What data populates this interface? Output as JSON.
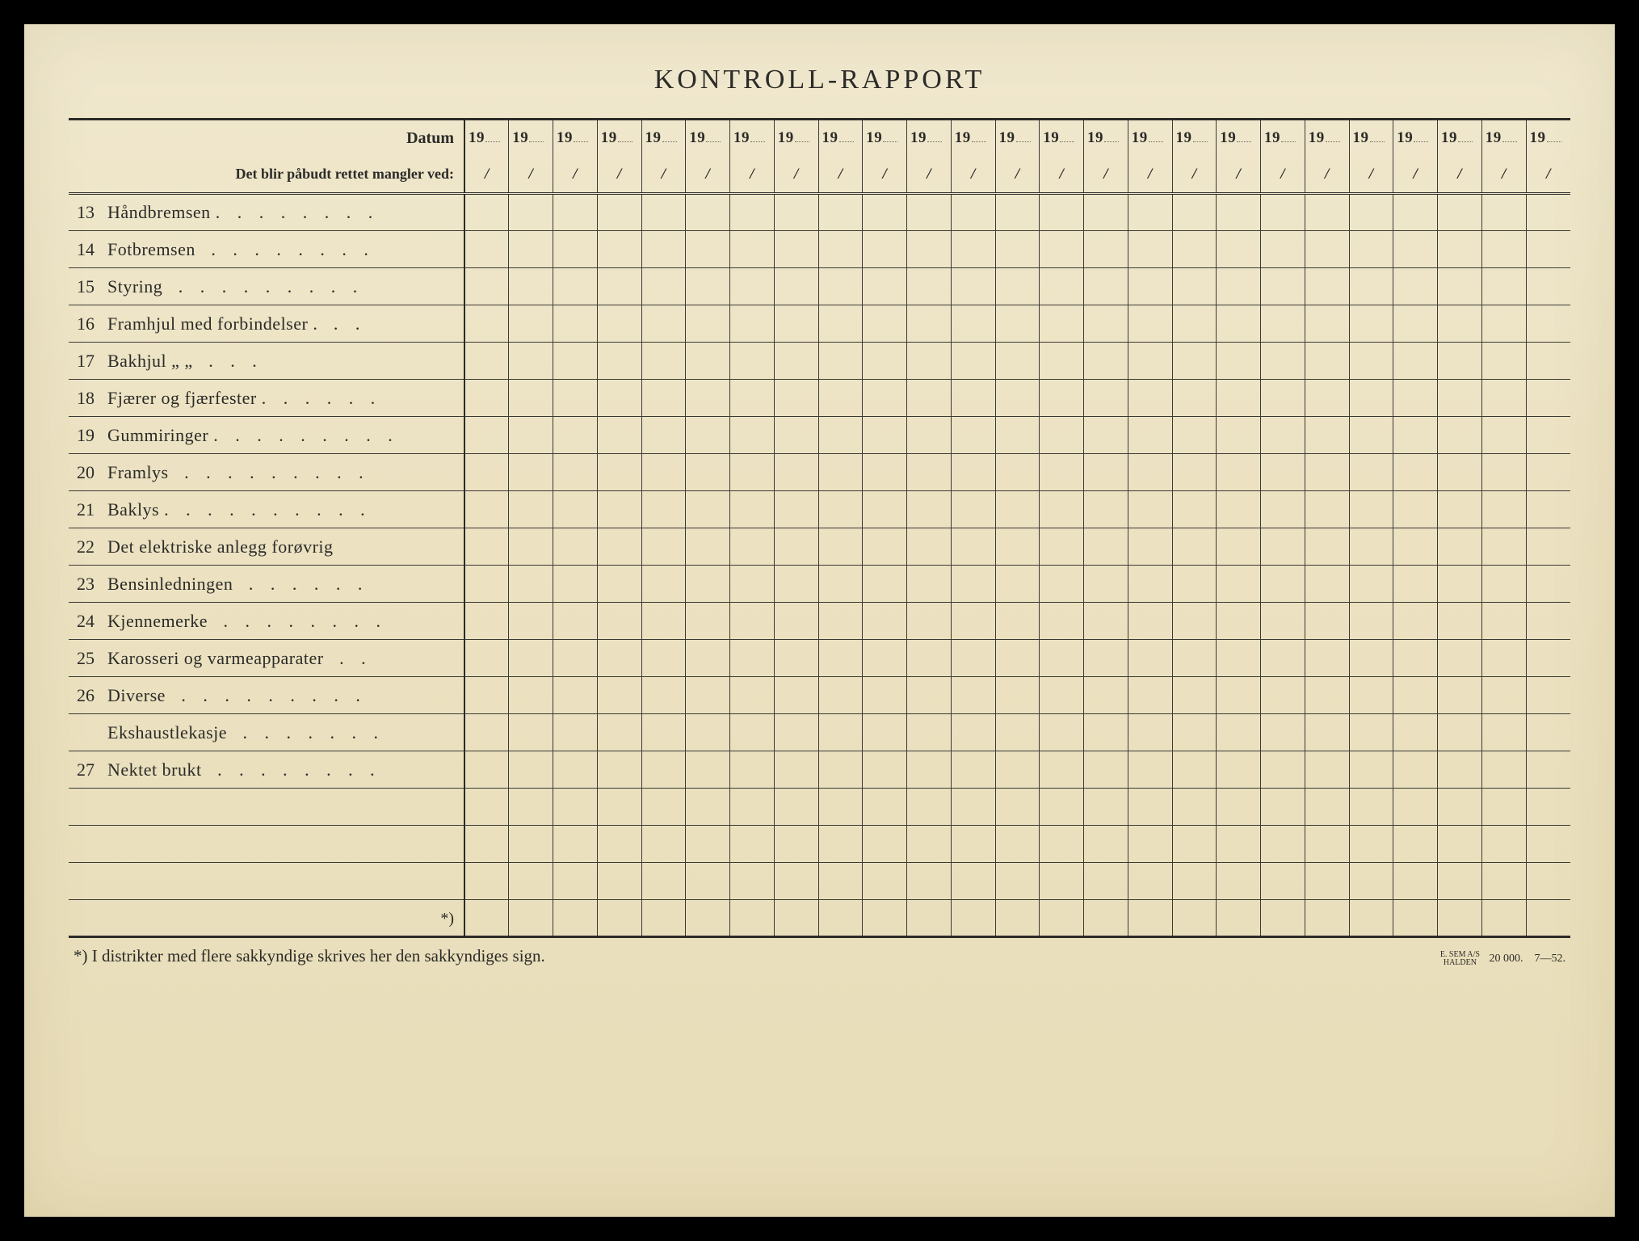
{
  "title": "KONTROLL-RAPPORT",
  "header": {
    "datum_label": "Datum",
    "sub_label": "Det blir påbudt rettet mangler ved:",
    "year_prefix": "19",
    "slash": "/",
    "num_date_cols": 25
  },
  "rows": [
    {
      "num": "13",
      "text": "Håndbremsen",
      "dots": ". . . . . . . ."
    },
    {
      "num": "14",
      "text": "Fotbremsen",
      "dots": " . . . . . . . ."
    },
    {
      "num": "15",
      "text": "Styring",
      "dots": "  . . . . . . . . ."
    },
    {
      "num": "16",
      "text": "Framhjul med forbindelser .",
      "dots": "  . ."
    },
    {
      "num": "17",
      "text": "Bakhjul     „       „",
      "dots": "   . . ."
    },
    {
      "num": "18",
      "text": "Fjærer og fjærfester",
      "dots": ". . . . . ."
    },
    {
      "num": "19",
      "text": "Gummiringer",
      "dots": ". . . . . . . . ."
    },
    {
      "num": "20",
      "text": "Framlys",
      "dots": " . . . .   . . . . ."
    },
    {
      "num": "21",
      "text": "Baklys",
      "dots": ". . . .  . . . . . ."
    },
    {
      "num": "22",
      "text": "Det elektriske anlegg forøvrig",
      "dots": ""
    },
    {
      "num": "23",
      "text": "Bensinledningen",
      "dots": " . . . . . ."
    },
    {
      "num": "24",
      "text": "Kjennemerke",
      "dots": " . . . . . . . ."
    },
    {
      "num": "25",
      "text": "Karosseri og varmeapparater",
      "dots": " . ."
    },
    {
      "num": "26",
      "text": "Diverse",
      "dots": "  .  . . . . . . . ."
    },
    {
      "num": "",
      "text": "Ekshaustlekasje",
      "dots": " . . . . . . ."
    },
    {
      "num": "27",
      "text": "Nektet brukt",
      "dots": " . . . . . . . ."
    }
  ],
  "blank_rows": 3,
  "star_row_label": "*)",
  "footnote": {
    "left": "*)  I distrikter med flere sakkyndige skrives her den sakkyndiges sign.",
    "printer_small": "E. SEM A/S\nHALDEN",
    "print_run": "20 000.",
    "print_date": "7—52."
  },
  "colors": {
    "paper": "#f0e8ce",
    "ink": "#2b2b28",
    "border": "#3a3a35"
  }
}
